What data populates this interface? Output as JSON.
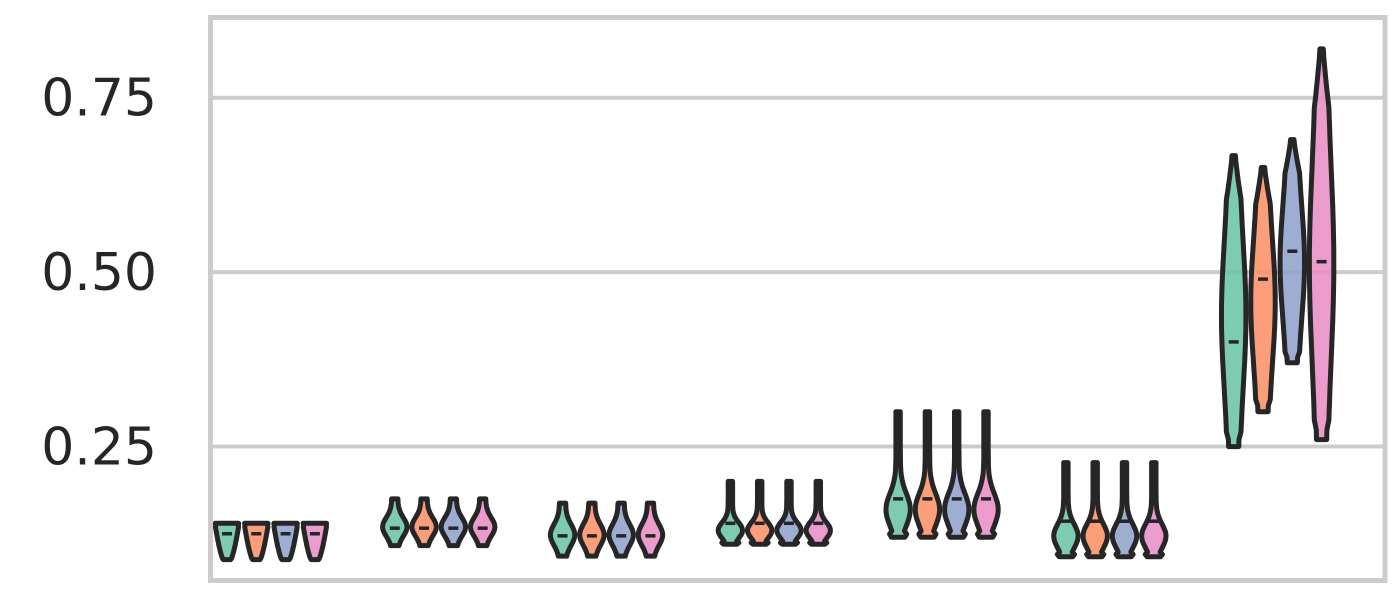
{
  "chart_data": {
    "type": "violin",
    "title": "",
    "xlabel": "",
    "ylabel": "",
    "ylim": [
      0.058,
      0.865
    ],
    "yticks": [
      0.25,
      0.5,
      0.75
    ],
    "ytick_labels": [
      "0.25",
      "0.50",
      "0.75"
    ],
    "grid": true,
    "legend": "none",
    "num_groups": 7,
    "series": [
      {
        "color": "#66c2a5",
        "violins": [
          {
            "min": 0.088,
            "max": 0.14,
            "median": 0.125
          },
          {
            "min": 0.108,
            "max": 0.175,
            "median": 0.133
          },
          {
            "min": 0.093,
            "max": 0.169,
            "median": 0.122
          },
          {
            "min": 0.11,
            "max": 0.2,
            "median": 0.14
          },
          {
            "min": 0.12,
            "max": 0.3,
            "median": 0.175
          },
          {
            "min": 0.092,
            "max": 0.227,
            "median": 0.143
          },
          {
            "min": 0.25,
            "max": 0.667,
            "median": 0.4
          }
        ]
      },
      {
        "color": "#fc8d62",
        "violins": [
          {
            "min": 0.088,
            "max": 0.14,
            "median": 0.125
          },
          {
            "min": 0.108,
            "max": 0.175,
            "median": 0.133
          },
          {
            "min": 0.093,
            "max": 0.169,
            "median": 0.122
          },
          {
            "min": 0.11,
            "max": 0.2,
            "median": 0.14
          },
          {
            "min": 0.12,
            "max": 0.3,
            "median": 0.175
          },
          {
            "min": 0.092,
            "max": 0.227,
            "median": 0.143
          },
          {
            "min": 0.3,
            "max": 0.65,
            "median": 0.49
          }
        ]
      },
      {
        "color": "#8da0cb",
        "violins": [
          {
            "min": 0.088,
            "max": 0.14,
            "median": 0.125
          },
          {
            "min": 0.108,
            "max": 0.175,
            "median": 0.133
          },
          {
            "min": 0.093,
            "max": 0.169,
            "median": 0.122
          },
          {
            "min": 0.11,
            "max": 0.2,
            "median": 0.14
          },
          {
            "min": 0.12,
            "max": 0.3,
            "median": 0.175
          },
          {
            "min": 0.092,
            "max": 0.227,
            "median": 0.143
          },
          {
            "min": 0.37,
            "max": 0.69,
            "median": 0.53
          }
        ]
      },
      {
        "color": "#e78ac3",
        "violins": [
          {
            "min": 0.088,
            "max": 0.14,
            "median": 0.125
          },
          {
            "min": 0.108,
            "max": 0.175,
            "median": 0.133
          },
          {
            "min": 0.093,
            "max": 0.169,
            "median": 0.122
          },
          {
            "min": 0.11,
            "max": 0.2,
            "median": 0.14
          },
          {
            "min": 0.12,
            "max": 0.3,
            "median": 0.175
          },
          {
            "min": 0.092,
            "max": 0.227,
            "median": 0.143
          },
          {
            "min": 0.26,
            "max": 0.82,
            "median": 0.515
          }
        ]
      }
    ]
  },
  "style": {
    "grid_color": "#cccccc",
    "frame_color": "#cccccc",
    "outline_color": "#262626",
    "tick_label_color": "#262626",
    "background": "#ffffff"
  }
}
